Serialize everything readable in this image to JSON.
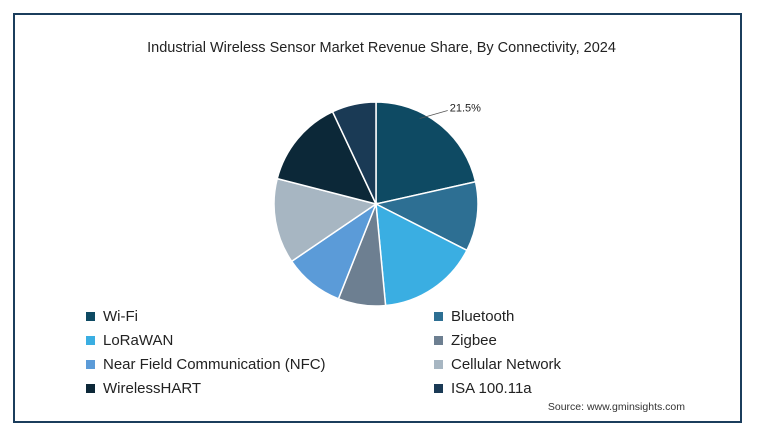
{
  "chart_data": {
    "type": "pie",
    "title": "Industrial Wireless Sensor Market Revenue Share, By Connectivity, 2024",
    "slices": [
      {
        "label": "Wi-Fi",
        "value": 21.5,
        "color": "#0e4a63"
      },
      {
        "label": "Bluetooth",
        "value": 11.0,
        "color": "#2d6f93"
      },
      {
        "label": "LoRaWAN",
        "value": 16.0,
        "color": "#3aaee2"
      },
      {
        "label": "Zigbee",
        "value": 7.5,
        "color": "#6d7f91"
      },
      {
        "label": "Near Field Communication (NFC)",
        "value": 9.5,
        "color": "#5b9bd8"
      },
      {
        "label": "Cellular Network",
        "value": 13.5,
        "color": "#a7b6c2"
      },
      {
        "label": "WirelessHART",
        "value": 14.0,
        "color": "#0c2838"
      },
      {
        "label": "ISA 100.11a",
        "value": 7.0,
        "color": "#1a3a55"
      }
    ],
    "annotations": [
      "21.5%"
    ],
    "legend_position": "bottom"
  },
  "source": "Source: www.gminsights.com"
}
